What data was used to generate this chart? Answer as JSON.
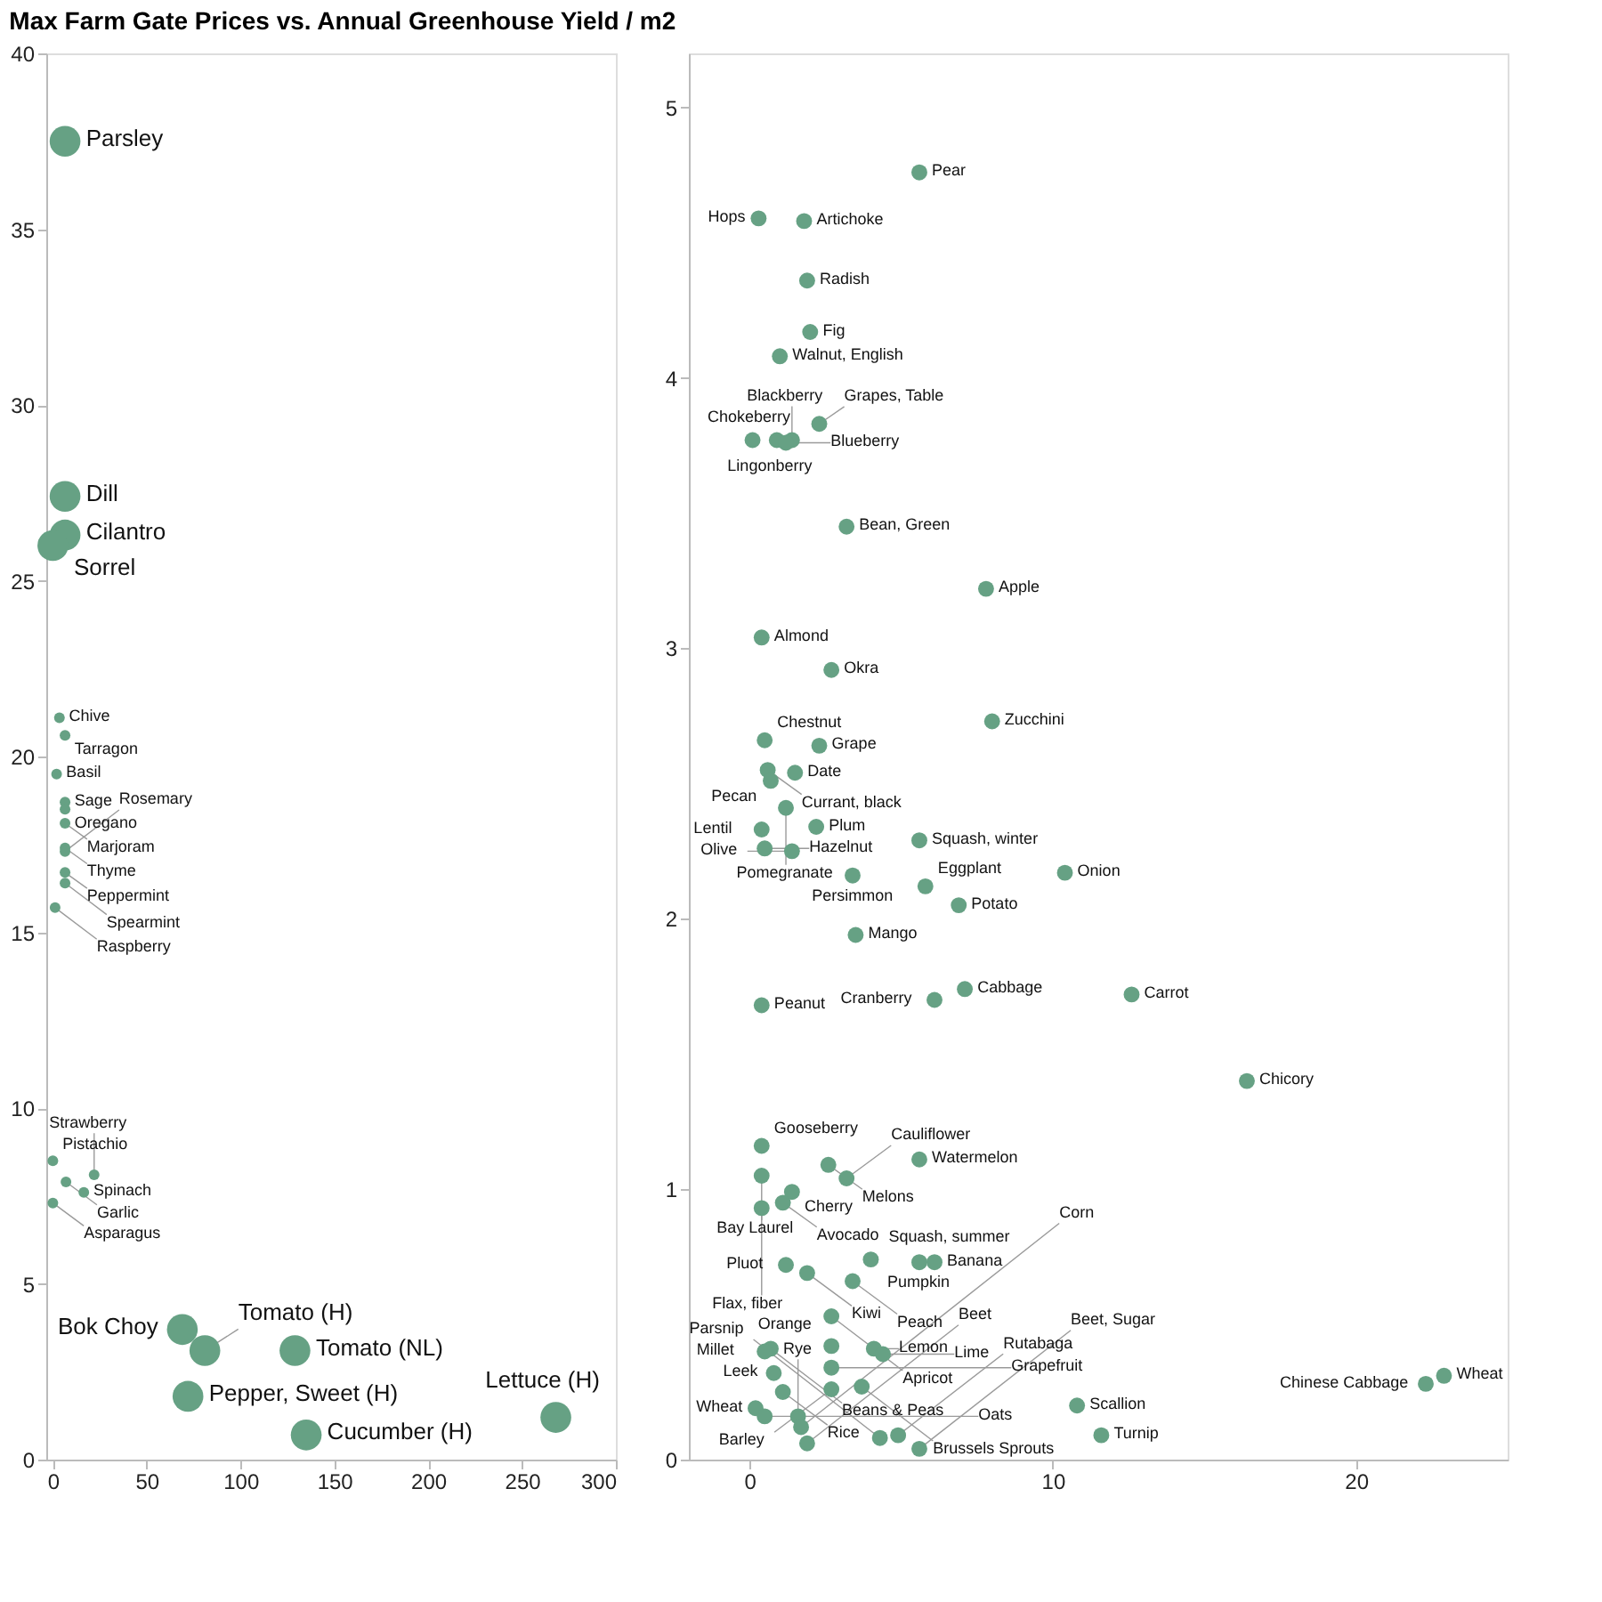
{
  "chart_data": [
    {
      "type": "bubble",
      "title": "Max Farm Gate Prices vs. Annual Greenhouse Yield / m2",
      "xlim": [
        -3.5,
        300
      ],
      "ylim": [
        0,
        40
      ],
      "xticks": [
        0,
        50,
        100,
        150,
        200,
        250,
        300
      ],
      "yticks": [
        0,
        5,
        10,
        15,
        20,
        25,
        30,
        35,
        40
      ],
      "grid": false,
      "marker": "circle",
      "series": [
        {
          "color": "#66a184",
          "x": [
            6.5,
            6.5,
            6.5,
            0,
            3.5,
            6.5,
            2,
            6.5,
            6.5,
            6.5,
            6.5,
            6.5,
            6.5,
            6.5,
            1.2,
            0,
            7,
            0,
            16.5,
            22,
            69,
            81,
            129,
            72,
            135,
            268
          ],
          "values": [
            37.5,
            27.4,
            26.3,
            26,
            21.1,
            20.6,
            19.5,
            18.7,
            18.5,
            18.1,
            17.4,
            17.3,
            16.7,
            16.4,
            15.7,
            8.5,
            7.9,
            7.3,
            7.6,
            8.1,
            3.7,
            3.1,
            3.1,
            1.8,
            0.7,
            1.2
          ],
          "sizes": [
            1,
            1,
            1,
            1,
            0.12,
            0.12,
            0.12,
            0.12,
            0.12,
            0.12,
            0.12,
            0.12,
            0.12,
            0.12,
            0.12,
            0.12,
            0.12,
            0.12,
            0.12,
            0.12,
            1,
            1,
            1,
            1,
            1,
            1
          ]
        }
      ],
      "annotations": [
        {
          "text": "Parsley",
          "x": 6.5,
          "y": 37.5
        },
        {
          "text": "Dill",
          "x": 6.5,
          "y": 27.4
        },
        {
          "text": "Cilantro",
          "x": 6.5,
          "y": 26.3
        },
        {
          "text": "Sorrel",
          "x": 0,
          "y": 26
        },
        {
          "text": "Chive",
          "x": 3.5,
          "y": 21.1
        },
        {
          "text": "Tarragon",
          "x": 6.5,
          "y": 20.6
        },
        {
          "text": "Basil",
          "x": 2,
          "y": 19.5
        },
        {
          "text": "Sage",
          "x": 6.5,
          "y": 18.7
        },
        {
          "text": "Oregano",
          "x": 6.5,
          "y": 18.5
        },
        {
          "text": "Marjoram",
          "x": 6.5,
          "y": 18.1
        },
        {
          "text": "Thyme",
          "x": 6.5,
          "y": 17.4
        },
        {
          "text": "Rosemary",
          "x": 6.5,
          "y": 17.3
        },
        {
          "text": "Peppermint",
          "x": 6.5,
          "y": 16.7
        },
        {
          "text": "Spearmint",
          "x": 6.5,
          "y": 16.4
        },
        {
          "text": "Raspberry",
          "x": 1.2,
          "y": 15.7
        },
        {
          "text": "Pistachio",
          "x": 0,
          "y": 8.5
        },
        {
          "text": "Garlic",
          "x": 7,
          "y": 7.9
        },
        {
          "text": "Asparagus",
          "x": 0,
          "y": 7.3
        },
        {
          "text": "Spinach",
          "x": 16.5,
          "y": 7.6
        },
        {
          "text": "Strawberry",
          "x": 22,
          "y": 8.1
        },
        {
          "text": "Bok Choy",
          "x": 69,
          "y": 3.7
        },
        {
          "text": "Tomato (H)",
          "x": 81,
          "y": 3.1
        },
        {
          "text": "Tomato (NL)",
          "x": 129,
          "y": 3.1
        },
        {
          "text": "Pepper, Sweet (H)",
          "x": 72,
          "y": 1.8
        },
        {
          "text": "Cucumber (H)",
          "x": 135,
          "y": 0.7
        },
        {
          "text": "Lettuce (H)",
          "x": 268,
          "y": 1.2
        }
      ]
    },
    {
      "type": "scatter",
      "xlim": [
        -2,
        25
      ],
      "ylim": [
        0,
        5.2
      ],
      "xticks": [
        0,
        10,
        20
      ],
      "yticks": [
        0,
        1,
        2,
        3,
        4,
        5
      ],
      "grid": false,
      "marker": "circle",
      "series": [
        {
          "color": "#66a184",
          "x": [
            5.6,
            0.3,
            1.8,
            1.9,
            2.0,
            1.0,
            0.1,
            0.9,
            1.4,
            1.2,
            2.3,
            3.2,
            7.8,
            0.4,
            2.7,
            8.0,
            0.5,
            2.3,
            0.6,
            0.7,
            1.5,
            1.2,
            0.4,
            2.2,
            0.5,
            1.4,
            5.6,
            3.4,
            5.8,
            10.4,
            6.9,
            3.5,
            0.4,
            7.1,
            6.1,
            12.6,
            16.4,
            0.4,
            2.6,
            5.6,
            0.4,
            3.2,
            1.4,
            1.1,
            0.4,
            4.0,
            6.1,
            5.6,
            1.2,
            1.9,
            3.4,
            2.7,
            0.7,
            0.5,
            2.7,
            4.1,
            4.4,
            2.7,
            3.7,
            0.8,
            1.1,
            2.7,
            0.2,
            0.5,
            1.6,
            1.7,
            4.9,
            1.9,
            4.3,
            5.6,
            10.8,
            11.6,
            22.9,
            22.3
          ],
          "values": [
            4.76,
            4.59,
            4.58,
            4.36,
            4.17,
            4.08,
            3.77,
            3.77,
            3.77,
            3.76,
            3.83,
            3.45,
            3.22,
            3.04,
            2.92,
            2.73,
            2.66,
            2.64,
            2.55,
            2.51,
            2.54,
            2.41,
            2.33,
            2.34,
            2.26,
            2.25,
            2.29,
            2.16,
            2.12,
            2.17,
            2.05,
            1.94,
            1.68,
            1.74,
            1.7,
            1.72,
            1.4,
            1.16,
            1.09,
            1.11,
            1.05,
            1.04,
            0.99,
            0.95,
            0.93,
            0.74,
            0.73,
            0.73,
            0.72,
            0.69,
            0.66,
            0.53,
            0.41,
            0.4,
            0.42,
            0.41,
            0.39,
            0.34,
            0.27,
            0.32,
            0.25,
            0.26,
            0.19,
            0.16,
            0.16,
            0.12,
            0.09,
            0.06,
            0.08,
            0.04,
            0.2,
            0.09,
            0.31,
            0.28
          ]
        }
      ],
      "annotations": [
        {
          "text": "Pear",
          "x": 5.6,
          "y": 4.76
        },
        {
          "text": "Hops",
          "x": 0.3,
          "y": 4.59
        },
        {
          "text": "Artichoke",
          "x": 1.8,
          "y": 4.58
        },
        {
          "text": "Radish",
          "x": 1.9,
          "y": 4.36
        },
        {
          "text": "Fig",
          "x": 2.0,
          "y": 4.17
        },
        {
          "text": "Walnut, English",
          "x": 1.0,
          "y": 4.08
        },
        {
          "text": "Chokeberry",
          "x": 0.1,
          "y": 3.77
        },
        {
          "text": "Lingonberry",
          "x": 0.9,
          "y": 3.77
        },
        {
          "text": "Blackberry",
          "x": 1.4,
          "y": 3.77
        },
        {
          "text": "Blueberry",
          "x": 1.2,
          "y": 3.76
        },
        {
          "text": "Grapes, Table",
          "x": 2.3,
          "y": 3.83
        },
        {
          "text": "Bean, Green",
          "x": 3.2,
          "y": 3.45
        },
        {
          "text": "Apple",
          "x": 7.8,
          "y": 3.22
        },
        {
          "text": "Almond",
          "x": 0.4,
          "y": 3.04
        },
        {
          "text": "Okra",
          "x": 2.7,
          "y": 2.92
        },
        {
          "text": "Zucchini",
          "x": 8.0,
          "y": 2.73
        },
        {
          "text": "Chestnut",
          "x": 0.5,
          "y": 2.66
        },
        {
          "text": "Grape",
          "x": 2.3,
          "y": 2.64
        },
        {
          "text": "Currant, black",
          "x": 0.6,
          "y": 2.55
        },
        {
          "text": "Pecan",
          "x": 0.7,
          "y": 2.51
        },
        {
          "text": "Date",
          "x": 1.5,
          "y": 2.54
        },
        {
          "text": "Pomegranate",
          "x": 1.2,
          "y": 2.41
        },
        {
          "text": "Lentil",
          "x": 0.4,
          "y": 2.33
        },
        {
          "text": "Plum",
          "x": 2.2,
          "y": 2.34
        },
        {
          "text": "Hazelnut",
          "x": 0.5,
          "y": 2.26
        },
        {
          "text": "Olive",
          "x": 1.4,
          "y": 2.25
        },
        {
          "text": "Squash, winter",
          "x": 5.6,
          "y": 2.29
        },
        {
          "text": "Persimmon",
          "x": 3.4,
          "y": 2.16
        },
        {
          "text": "Eggplant",
          "x": 5.8,
          "y": 2.12
        },
        {
          "text": "Onion",
          "x": 10.4,
          "y": 2.17
        },
        {
          "text": "Potato",
          "x": 6.9,
          "y": 2.05
        },
        {
          "text": "Mango",
          "x": 3.5,
          "y": 1.94
        },
        {
          "text": "Peanut",
          "x": 0.4,
          "y": 1.68
        },
        {
          "text": "Cabbage",
          "x": 7.1,
          "y": 1.74
        },
        {
          "text": "Cranberry",
          "x": 6.1,
          "y": 1.7
        },
        {
          "text": "Carrot",
          "x": 12.6,
          "y": 1.72
        },
        {
          "text": "Chicory",
          "x": 16.4,
          "y": 1.4
        },
        {
          "text": "Gooseberry",
          "x": 0.4,
          "y": 1.16
        },
        {
          "text": "Melons",
          "x": 2.6,
          "y": 1.09
        },
        {
          "text": "Watermelon",
          "x": 5.6,
          "y": 1.11
        },
        {
          "text": "Bay Laurel",
          "x": 0.4,
          "y": 1.05
        },
        {
          "text": "Cauliflower",
          "x": 3.2,
          "y": 1.04
        },
        {
          "text": "Cherry",
          "x": 1.4,
          "y": 0.99
        },
        {
          "text": "Avocado",
          "x": 1.1,
          "y": 0.95
        },
        {
          "text": "Flax, fiber",
          "x": 0.4,
          "y": 0.93
        },
        {
          "text": "Squash, summer",
          "x": 4.0,
          "y": 0.74
        },
        {
          "text": "Banana",
          "x": 6.1,
          "y": 0.73
        },
        {
          "text": "Pumpkin",
          "x": 5.6,
          "y": 0.73
        },
        {
          "text": "Pluot",
          "x": 1.2,
          "y": 0.72
        },
        {
          "text": "Kiwi",
          "x": 1.9,
          "y": 0.69
        },
        {
          "text": "Peach",
          "x": 3.4,
          "y": 0.66
        },
        {
          "text": "Apricot",
          "x": 2.7,
          "y": 0.53
        },
        {
          "text": "Beans & Peas",
          "x": 0.7,
          "y": 0.41
        },
        {
          "text": "Millet",
          "x": 0.5,
          "y": 0.4
        },
        {
          "text": "Orange",
          "x": 2.7,
          "y": 0.42
        },
        {
          "text": "Lemon",
          "x": 4.1,
          "y": 0.41
        },
        {
          "text": "Lime",
          "x": 4.4,
          "y": 0.39
        },
        {
          "text": "Grapefruit",
          "x": 2.7,
          "y": 0.34
        },
        {
          "text": "Brussels Sprouts",
          "x": 3.7,
          "y": 0.27
        },
        {
          "text": "Leek",
          "x": 0.8,
          "y": 0.32
        },
        {
          "text": "Rice",
          "x": 1.1,
          "y": 0.25
        },
        {
          "text": "Barley",
          "x": 2.7,
          "y": 0.26
        },
        {
          "text": "Wheat",
          "x": 0.2,
          "y": 0.19
        },
        {
          "text": "Oats",
          "x": 0.5,
          "y": 0.16
        },
        {
          "text": "Rye",
          "x": 1.6,
          "y": 0.16
        },
        {
          "text": "Corn",
          "x": 1.7,
          "y": 0.12
        },
        {
          "text": "Rutabaga",
          "x": 4.9,
          "y": 0.09
        },
        {
          "text": "Beet",
          "x": 1.9,
          "y": 0.06
        },
        {
          "text": "Parsnip",
          "x": 4.3,
          "y": 0.08
        },
        {
          "text": "Beet, Sugar",
          "x": 5.6,
          "y": 0.04
        },
        {
          "text": "Scallion",
          "x": 10.8,
          "y": 0.2
        },
        {
          "text": "Turnip",
          "x": 11.6,
          "y": 0.09
        },
        {
          "text": "Wheat",
          "x": 22.9,
          "y": 0.31
        },
        {
          "text": "Chinese Cabbage",
          "x": 22.3,
          "y": 0.28
        }
      ]
    }
  ]
}
